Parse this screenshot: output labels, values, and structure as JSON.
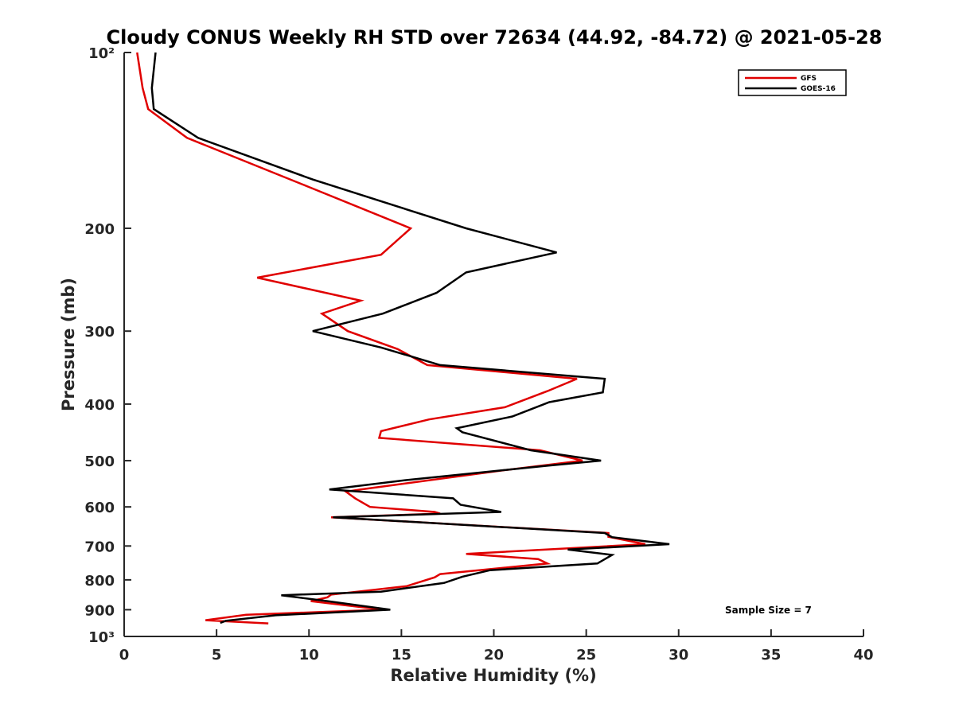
{
  "chart_data": {
    "type": "line",
    "title": "Cloudy CONUS Weekly RH STD over 72634 (44.92, -84.72) @ 2021-05-28",
    "xlabel": "Relative Humidity (%)",
    "ylabel": "Pressure (mb)",
    "xlim": [
      0,
      40
    ],
    "ylim": [
      100,
      1000
    ],
    "y_scale": "log",
    "y_reversed": true,
    "x_ticks": [
      0,
      5,
      10,
      15,
      20,
      25,
      30,
      35,
      40
    ],
    "x_tick_labels": [
      "0",
      "5",
      "10",
      "15",
      "20",
      "25",
      "30",
      "35",
      "40"
    ],
    "y_ticks": [
      100,
      200,
      300,
      400,
      500,
      600,
      700,
      800,
      900,
      1000
    ],
    "y_tick_labels": [
      "10²",
      "200",
      "300",
      "400",
      "500",
      "600",
      "700",
      "800",
      "900",
      "10³"
    ],
    "legend_position": "top-right",
    "annotation": "Sample Size = 7",
    "series": [
      {
        "name": "GFS",
        "color": "#e00000",
        "points": [
          [
            0.7,
            100
          ],
          [
            1.0,
            115
          ],
          [
            1.3,
            125
          ],
          [
            3.4,
            140
          ],
          [
            10.0,
            170
          ],
          [
            15.5,
            200
          ],
          [
            13.9,
            222
          ],
          [
            7.2,
            243
          ],
          [
            12.8,
            266
          ],
          [
            10.7,
            280
          ],
          [
            12.1,
            300
          ],
          [
            14.8,
            322
          ],
          [
            16.4,
            343
          ],
          [
            24.5,
            362
          ],
          [
            22.9,
            380
          ],
          [
            20.6,
            405
          ],
          [
            16.5,
            425
          ],
          [
            13.9,
            445
          ],
          [
            13.8,
            457
          ],
          [
            22.5,
            480
          ],
          [
            24.8,
            500
          ],
          [
            20.4,
            520
          ],
          [
            12.8,
            560
          ],
          [
            12.0,
            565
          ],
          [
            12.5,
            580
          ],
          [
            13.3,
            600
          ],
          [
            16.8,
            612
          ],
          [
            17.1,
            616
          ],
          [
            11.2,
            625
          ],
          [
            26.2,
            665
          ],
          [
            26.2,
            675
          ],
          [
            28.2,
            695
          ],
          [
            18.5,
            722
          ],
          [
            22.4,
            737
          ],
          [
            22.9,
            750
          ],
          [
            17.1,
            782
          ],
          [
            16.8,
            792
          ],
          [
            15.3,
            820
          ],
          [
            11.2,
            848
          ],
          [
            11.0,
            857
          ],
          [
            10.1,
            870
          ],
          [
            14.0,
            900
          ],
          [
            6.6,
            918
          ],
          [
            4.4,
            938
          ],
          [
            7.8,
            950
          ]
        ]
      },
      {
        "name": "GOES-16",
        "color": "#000000",
        "points": [
          [
            1.7,
            100
          ],
          [
            1.5,
            115
          ],
          [
            1.6,
            125
          ],
          [
            4.0,
            140
          ],
          [
            10.2,
            165
          ],
          [
            18.5,
            200
          ],
          [
            23.4,
            220
          ],
          [
            18.5,
            238
          ],
          [
            16.9,
            258
          ],
          [
            14.0,
            280
          ],
          [
            10.2,
            300
          ],
          [
            13.9,
            320
          ],
          [
            17.1,
            343
          ],
          [
            26.0,
            362
          ],
          [
            25.9,
            382
          ],
          [
            23.0,
            397
          ],
          [
            21.0,
            420
          ],
          [
            18.0,
            440
          ],
          [
            18.3,
            447
          ],
          [
            22.0,
            480
          ],
          [
            25.8,
            500
          ],
          [
            22.9,
            510
          ],
          [
            15.2,
            540
          ],
          [
            11.1,
            560
          ],
          [
            17.8,
            580
          ],
          [
            18.2,
            595
          ],
          [
            20.4,
            612
          ],
          [
            11.3,
            625
          ],
          [
            26.0,
            665
          ],
          [
            26.4,
            676
          ],
          [
            29.5,
            695
          ],
          [
            24.0,
            710
          ],
          [
            26.4,
            725
          ],
          [
            25.6,
            750
          ],
          [
            19.8,
            770
          ],
          [
            18.3,
            790
          ],
          [
            17.3,
            810
          ],
          [
            13.9,
            838
          ],
          [
            8.5,
            850
          ],
          [
            11.0,
            870
          ],
          [
            14.4,
            900
          ],
          [
            8.2,
            920
          ],
          [
            5.5,
            940
          ],
          [
            5.2,
            948
          ]
        ]
      }
    ]
  }
}
